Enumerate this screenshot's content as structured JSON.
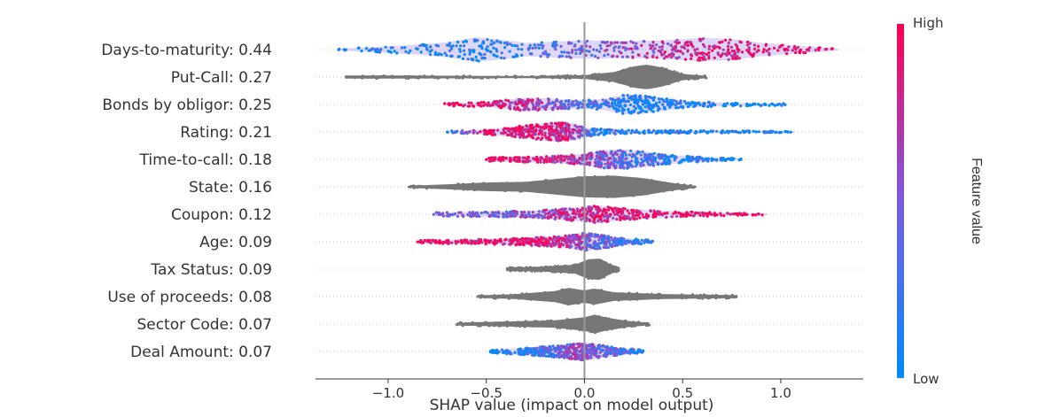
{
  "chart_data": {
    "type": "scatter",
    "subtype": "shap-violin-summary",
    "xlabel": "SHAP value (impact on model output)",
    "xlim": [
      -1.37,
      1.42
    ],
    "xticks": [
      -1.0,
      -0.5,
      0.0,
      0.5,
      1.0
    ],
    "xtick_labels": [
      "−1.0",
      "−0.5",
      "0.0",
      "0.5",
      "1.0"
    ],
    "colorbar": {
      "title": "Feature value",
      "high_label": "High",
      "low_label": "Low",
      "low_color": "#008bfb",
      "high_color": "#ff0052",
      "gray_color": "#777777"
    },
    "features": [
      {
        "label": "Days-to-maturity: 0.44",
        "name": "Days-to-maturity",
        "importance": 0.44,
        "colored": true,
        "range": [
          -1.26,
          1.29
        ],
        "profile": [
          [
            -1.26,
            0.05
          ],
          [
            -1.1,
            0.2
          ],
          [
            -0.9,
            0.35
          ],
          [
            -0.7,
            0.6
          ],
          [
            -0.55,
            1.0
          ],
          [
            -0.45,
            0.85
          ],
          [
            -0.3,
            0.55
          ],
          [
            -0.15,
            0.65
          ],
          [
            0.0,
            0.75
          ],
          [
            0.2,
            0.7
          ],
          [
            0.4,
            0.75
          ],
          [
            0.6,
            0.95
          ],
          [
            0.75,
            0.85
          ],
          [
            0.9,
            0.55
          ],
          [
            1.05,
            0.35
          ],
          [
            1.2,
            0.2
          ],
          [
            1.29,
            0.05
          ]
        ],
        "color_trend": [
          [
            -1.26,
            0.0
          ],
          [
            -0.5,
            0.05
          ],
          [
            -0.2,
            0.25
          ],
          [
            0.0,
            0.45
          ],
          [
            0.3,
            0.65
          ],
          [
            0.6,
            0.9
          ],
          [
            1.29,
            1.0
          ]
        ]
      },
      {
        "label": "Put-Call: 0.27",
        "name": "Put-Call",
        "importance": 0.27,
        "colored": false,
        "range": [
          -1.22,
          0.62
        ],
        "profile": [
          [
            -1.22,
            0.12
          ],
          [
            -0.9,
            0.12
          ],
          [
            -0.6,
            0.1
          ],
          [
            -0.3,
            0.08
          ],
          [
            0.0,
            0.15
          ],
          [
            0.15,
            0.4
          ],
          [
            0.25,
            0.85
          ],
          [
            0.32,
            1.0
          ],
          [
            0.4,
            0.75
          ],
          [
            0.5,
            0.25
          ],
          [
            0.62,
            0.1
          ]
        ]
      },
      {
        "label": "Bonds by obligor: 0.25",
        "name": "Bonds by obligor",
        "importance": 0.25,
        "colored": true,
        "range": [
          -0.72,
          1.03
        ],
        "profile": [
          [
            -0.72,
            0.1
          ],
          [
            -0.5,
            0.2
          ],
          [
            -0.3,
            0.55
          ],
          [
            -0.2,
            0.5
          ],
          [
            -0.05,
            0.35
          ],
          [
            0.1,
            0.45
          ],
          [
            0.2,
            0.8
          ],
          [
            0.3,
            0.75
          ],
          [
            0.5,
            0.3
          ],
          [
            0.7,
            0.15
          ],
          [
            1.03,
            0.08
          ]
        ],
        "color_trend": [
          [
            -0.72,
            1.0
          ],
          [
            -0.4,
            0.85
          ],
          [
            -0.2,
            0.6
          ],
          [
            0.0,
            0.3
          ],
          [
            0.2,
            0.05
          ],
          [
            1.03,
            0.0
          ]
        ]
      },
      {
        "label": "Rating: 0.21",
        "name": "Rating",
        "importance": 0.21,
        "colored": true,
        "range": [
          -0.7,
          1.07
        ],
        "profile": [
          [
            -0.7,
            0.08
          ],
          [
            -0.5,
            0.2
          ],
          [
            -0.35,
            0.45
          ],
          [
            -0.15,
            0.8
          ],
          [
            -0.05,
            0.7
          ],
          [
            0.0,
            0.35
          ],
          [
            0.2,
            0.15
          ],
          [
            0.5,
            0.12
          ],
          [
            0.8,
            0.1
          ],
          [
            1.07,
            0.06
          ]
        ],
        "color_trend": [
          [
            -0.7,
            0.1
          ],
          [
            -0.5,
            0.9
          ],
          [
            -0.2,
            0.95
          ],
          [
            -0.05,
            0.7
          ],
          [
            0.05,
            0.15
          ],
          [
            1.07,
            0.0
          ]
        ]
      },
      {
        "label": "Time-to-call: 0.18",
        "name": "Time-to-call",
        "importance": 0.18,
        "colored": true,
        "range": [
          -0.5,
          0.8
        ],
        "profile": [
          [
            -0.5,
            0.15
          ],
          [
            -0.3,
            0.25
          ],
          [
            -0.15,
            0.3
          ],
          [
            0.0,
            0.45
          ],
          [
            0.1,
            0.75
          ],
          [
            0.2,
            0.8
          ],
          [
            0.3,
            0.65
          ],
          [
            0.45,
            0.35
          ],
          [
            0.6,
            0.2
          ],
          [
            0.8,
            0.08
          ]
        ],
        "color_trend": [
          [
            -0.5,
            1.0
          ],
          [
            -0.2,
            0.9
          ],
          [
            0.0,
            0.6
          ],
          [
            0.2,
            0.35
          ],
          [
            0.45,
            0.1
          ],
          [
            0.8,
            0.0
          ]
        ]
      },
      {
        "label": "State: 0.16",
        "name": "State",
        "importance": 0.16,
        "colored": false,
        "range": [
          -0.9,
          0.57
        ],
        "profile": [
          [
            -0.9,
            0.08
          ],
          [
            -0.7,
            0.2
          ],
          [
            -0.5,
            0.35
          ],
          [
            -0.3,
            0.4
          ],
          [
            -0.1,
            0.7
          ],
          [
            0.0,
            0.85
          ],
          [
            0.15,
            0.9
          ],
          [
            0.3,
            0.7
          ],
          [
            0.45,
            0.3
          ],
          [
            0.57,
            0.08
          ]
        ]
      },
      {
        "label": "Coupon: 0.12",
        "name": "Coupon",
        "importance": 0.12,
        "colored": true,
        "range": [
          -0.77,
          0.93
        ],
        "profile": [
          [
            -0.77,
            0.15
          ],
          [
            -0.5,
            0.22
          ],
          [
            -0.25,
            0.3
          ],
          [
            -0.05,
            0.55
          ],
          [
            0.05,
            0.75
          ],
          [
            0.15,
            0.55
          ],
          [
            0.35,
            0.3
          ],
          [
            0.6,
            0.2
          ],
          [
            0.75,
            0.12
          ],
          [
            0.85,
            0.08
          ],
          [
            0.93,
            0.06
          ]
        ],
        "color_trend": [
          [
            -0.77,
            0.35
          ],
          [
            -0.4,
            0.45
          ],
          [
            -0.1,
            0.75
          ],
          [
            0.1,
            0.85
          ],
          [
            0.5,
            0.95
          ],
          [
            0.93,
            1.0
          ]
        ]
      },
      {
        "label": "Age: 0.09",
        "name": "Age",
        "importance": 0.09,
        "colored": true,
        "range": [
          -0.85,
          0.35
        ],
        "profile": [
          [
            -0.85,
            0.12
          ],
          [
            -0.6,
            0.2
          ],
          [
            -0.3,
            0.3
          ],
          [
            -0.1,
            0.5
          ],
          [
            0.0,
            0.75
          ],
          [
            0.1,
            0.55
          ],
          [
            0.2,
            0.3
          ],
          [
            0.35,
            0.12
          ]
        ],
        "color_trend": [
          [
            -0.85,
            1.0
          ],
          [
            -0.4,
            0.95
          ],
          [
            -0.1,
            0.75
          ],
          [
            0.05,
            0.45
          ],
          [
            0.2,
            0.2
          ],
          [
            0.35,
            0.15
          ]
        ]
      },
      {
        "label": "Tax Status: 0.09",
        "name": "Tax Status",
        "importance": 0.09,
        "colored": false,
        "range": [
          -0.4,
          0.18
        ],
        "profile": [
          [
            -0.4,
            0.15
          ],
          [
            -0.2,
            0.2
          ],
          [
            -0.05,
            0.35
          ],
          [
            0.02,
            0.8
          ],
          [
            0.08,
            0.85
          ],
          [
            0.13,
            0.4
          ],
          [
            0.18,
            0.15
          ]
        ]
      },
      {
        "label": "Use of proceeds: 0.08",
        "name": "Use of proceeds",
        "importance": 0.08,
        "colored": false,
        "range": [
          -0.55,
          0.78
        ],
        "profile": [
          [
            -0.55,
            0.1
          ],
          [
            -0.35,
            0.2
          ],
          [
            -0.15,
            0.45
          ],
          [
            -0.08,
            0.7
          ],
          [
            0.0,
            0.5
          ],
          [
            0.05,
            0.65
          ],
          [
            0.15,
            0.35
          ],
          [
            0.4,
            0.2
          ],
          [
            0.78,
            0.12
          ]
        ]
      },
      {
        "label": "Sector Code: 0.07",
        "name": "Sector Code",
        "importance": 0.07,
        "colored": false,
        "range": [
          -0.65,
          0.33
        ],
        "profile": [
          [
            -0.65,
            0.12
          ],
          [
            -0.4,
            0.2
          ],
          [
            -0.15,
            0.3
          ],
          [
            0.0,
            0.55
          ],
          [
            0.05,
            0.75
          ],
          [
            0.12,
            0.5
          ],
          [
            0.22,
            0.25
          ],
          [
            0.33,
            0.1
          ]
        ]
      },
      {
        "label": "Deal Amount: 0.07",
        "name": "Deal Amount",
        "importance": 0.07,
        "colored": true,
        "range": [
          -0.48,
          0.3
        ],
        "profile": [
          [
            -0.48,
            0.12
          ],
          [
            -0.3,
            0.3
          ],
          [
            -0.1,
            0.55
          ],
          [
            0.0,
            0.75
          ],
          [
            0.08,
            0.55
          ],
          [
            0.18,
            0.3
          ],
          [
            0.3,
            0.12
          ]
        ],
        "color_trend": [
          [
            -0.48,
            0.0
          ],
          [
            -0.25,
            0.2
          ],
          [
            -0.05,
            0.55
          ],
          [
            0.1,
            0.45
          ],
          [
            0.3,
            0.1
          ]
        ]
      }
    ]
  }
}
